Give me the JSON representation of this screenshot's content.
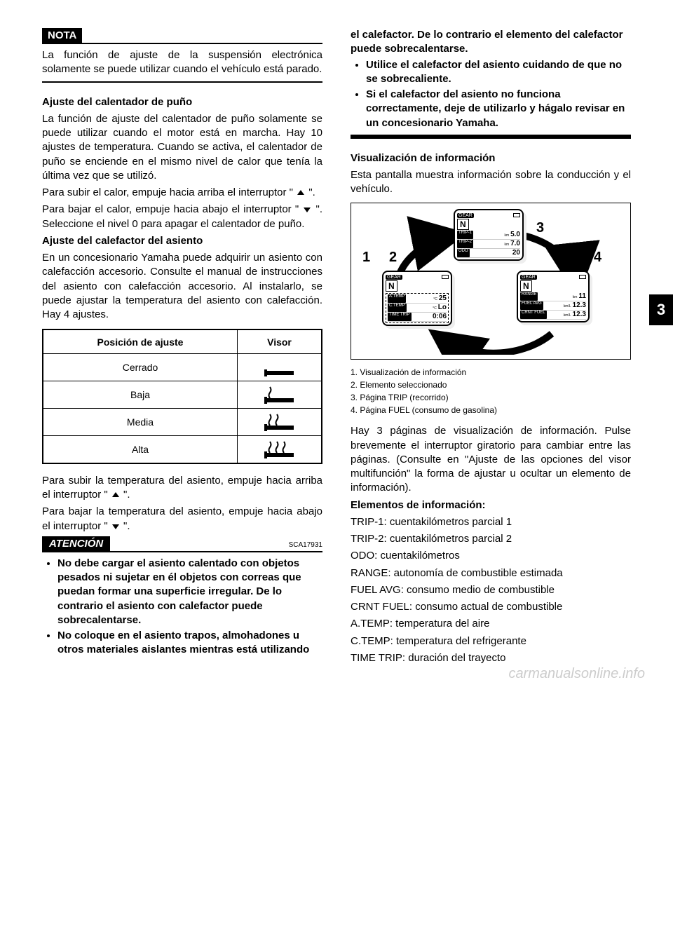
{
  "sideTab": "3",
  "nota": {
    "label": "NOTA",
    "body": "La función de ajuste de la suspensión electrónica solamente se puede utilizar cuando el vehículo está parado."
  },
  "leftCol": {
    "gripHeat": {
      "heading": "Ajuste del calentador de puño",
      "p1": "La función de ajuste del calentador de puño solamente se puede utilizar cuando el motor está en marcha. Hay 10 ajustes de temperatura. Cuando se activa, el calentador de puño se enciende en el mismo nivel de calor que tenía la última vez que se utilizó.",
      "p2a": "Para subir el calor, empuje hacia arriba el interruptor \"",
      "p2b": "\".",
      "p3a": "Para bajar el calor, empuje hacia abajo el interruptor \"",
      "p3b": "\". Seleccione el nivel 0 para apagar el calentador de puño."
    },
    "seatHeat": {
      "heading": "Ajuste del calefactor del asiento",
      "p1": "En un concesionario Yamaha puede adquirir un asiento con calefacción accesorio. Consulte el manual de instrucciones del asiento con calefacción accesorio. Al instalarlo, se puede ajustar la temperatura del asiento con calefacción. Hay 4 ajustes."
    },
    "visorTable": {
      "headers": [
        "Posición de ajuste",
        "Visor"
      ],
      "rows": [
        {
          "label": "Cerrado",
          "heatLevel": 0
        },
        {
          "label": "Baja",
          "heatLevel": 1
        },
        {
          "label": "Media",
          "heatLevel": 2
        },
        {
          "label": "Alta",
          "heatLevel": 3
        }
      ]
    },
    "seatControls": {
      "p1a": "Para subir la temperatura del asiento, empuje hacia arriba el interruptor \"",
      "p1b": "\".",
      "p2a": "Para bajar la temperatura del asiento, empuje hacia abajo el interruptor \"",
      "p2b": "\"."
    },
    "atencion": {
      "label": "ATENCIÓN",
      "code": "SCA17931",
      "bullets": [
        "No debe cargar el asiento calentado con objetos pesados ni sujetar en él objetos con correas que puedan formar una superficie irregular. De lo contrario el asiento con calefactor puede sobrecalentarse.",
        "No coloque en el asiento trapos, almohadones u otros materiales aislantes mientras está utilizando"
      ]
    }
  },
  "rightCol": {
    "bulletsCont": [
      "el calefactor. De lo contrario el elemento del calefactor puede sobrecalentarse.",
      "Utilice el calefactor del asiento cuidando de que no se sobrecaliente.",
      "Si el calefactor del asiento no funciona correctamente, deje de utilizarlo y hágalo revisar en un concesionario Yamaha."
    ],
    "infoDisplay": {
      "heading": "Visualización de información",
      "p1": "Esta pantalla muestra información sobre la conducción y el vehículo."
    },
    "figure": {
      "callouts": {
        "c1": "1",
        "c2": "2",
        "c3": "3",
        "c4": "4"
      },
      "panelTop": {
        "gear": "GEAR",
        "N": "N",
        "rows": [
          {
            "lbl": "TRIP-1",
            "unit": "km",
            "val": "5.0"
          },
          {
            "lbl": "TRIP-2",
            "unit": "km",
            "val": "7.0"
          },
          {
            "lbl": "ODO",
            "unit": "",
            "val": "20"
          }
        ]
      },
      "panelLeft": {
        "gear": "GEAR",
        "N": "N",
        "rows": [
          {
            "lbl": "A.TEMP",
            "unit": "°C",
            "val": "25"
          },
          {
            "lbl": "C.TEMP",
            "unit": "°C",
            "val": "Lo"
          },
          {
            "lbl": "TIME TRIP",
            "unit": "",
            "val": "0:06"
          }
        ]
      },
      "panelRight": {
        "gear": "GEAR",
        "N": "N",
        "rows": [
          {
            "lbl": "RANGE",
            "unit": "km",
            "val": "11"
          },
          {
            "lbl": "FUEL AVG",
            "unit": "km/L",
            "val": "12.3"
          },
          {
            "lbl": "CRNT FUEL",
            "unit": "km/L",
            "val": "12.3"
          }
        ]
      }
    },
    "figLegend": {
      "l1": "1. Visualización de información",
      "l2": "2. Elemento seleccionado",
      "l3": "3. Página TRIP (recorrido)",
      "l4": "4. Página FUEL (consumo de gasolina)"
    },
    "infoPages": {
      "p1a": "Hay 3 páginas de visualización de información. Pulse brevemente el interruptor giratorio para cambiar entre las páginas. (Consulte en \"",
      "p1link": "Ajuste de las opciones del visor multifunción",
      "p1b": "\" la forma de ajustar u ocultar un elemento de información)."
    },
    "itemsHeading": "Elementos de información:",
    "items": [
      {
        "abbr": "TRIP-1",
        "desc": "cuentakilómetros parcial 1"
      },
      {
        "abbr": "TRIP-2",
        "desc": "cuentakilómetros parcial 2"
      },
      {
        "abbr": "ODO",
        "desc": "cuentakilómetros"
      },
      {
        "abbr": "RANGE",
        "desc": "autonomía de combustible estimada"
      },
      {
        "abbr": "FUEL AVG",
        "desc": "consumo medio de combustible"
      },
      {
        "abbr": "CRNT FUEL",
        "desc": "consumo actual de combustible"
      },
      {
        "abbr": "A.TEMP",
        "desc": "temperatura del aire"
      },
      {
        "abbr": "C.TEMP",
        "desc": "temperatura del refrigerante"
      },
      {
        "abbr": "TIME TRIP",
        "desc": "duración del trayecto"
      }
    ]
  },
  "watermark": "carmanualsonline.info",
  "colors": {
    "text": "#000000",
    "bg": "#ffffff",
    "watermark": "#cccccc"
  }
}
